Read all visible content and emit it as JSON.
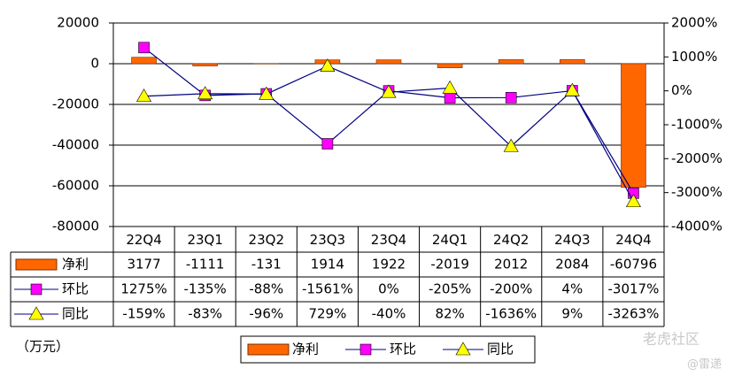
{
  "chart_data": {
    "type": "bar-line",
    "categories": [
      "22Q4",
      "23Q1",
      "23Q2",
      "23Q3",
      "23Q4",
      "24Q1",
      "24Q2",
      "24Q3",
      "24Q4"
    ],
    "series": [
      {
        "name": "净利",
        "type": "bar",
        "color": "#ff6600",
        "values": [
          3177,
          -1111,
          -131,
          1914,
          1922,
          -2019,
          2012,
          2084,
          -60796
        ]
      },
      {
        "name": "环比",
        "type": "line",
        "axis": "y2",
        "color": "#ff00ff",
        "line_color": "#000080",
        "marker": "square",
        "values": [
          1275,
          -135,
          -88,
          -1561,
          0,
          -205,
          -200,
          4,
          -3017
        ],
        "value_labels": [
          "1275%",
          "-135%",
          "-88%",
          "-1561%",
          "0%",
          "-205%",
          "-200%",
          "4%",
          "-3017%"
        ]
      },
      {
        "name": "同比",
        "type": "line",
        "axis": "y2",
        "color": "#ffff00",
        "line_color": "#000080",
        "marker": "triangle",
        "values": [
          -159,
          -83,
          -96,
          729,
          -40,
          82,
          -1636,
          9,
          -3263
        ],
        "value_labels": [
          "-159%",
          "-83%",
          "-96%",
          "729%",
          "-40%",
          "82%",
          "-1636%",
          "9%",
          "-3263%"
        ]
      }
    ],
    "ylim": [
      -80000,
      20000
    ],
    "yticks": [
      20000,
      0,
      -20000,
      -40000,
      -60000,
      -80000
    ],
    "y2lim": [
      -4000,
      2000
    ],
    "y2ticks": [
      {
        "value": 2000,
        "label": "2000%"
      },
      {
        "value": 1000,
        "label": "1000%"
      },
      {
        "value": 0,
        "label": "0%"
      },
      {
        "value": -1000,
        "label": "-1000%"
      },
      {
        "value": -2000,
        "label": "-2000%"
      },
      {
        "value": -3000,
        "label": "-3000%"
      },
      {
        "value": -4000,
        "label": "-4000%"
      }
    ],
    "grid": true,
    "unit": "（万元）",
    "watermarks": [
      "老虎社区",
      "@雷递"
    ]
  }
}
